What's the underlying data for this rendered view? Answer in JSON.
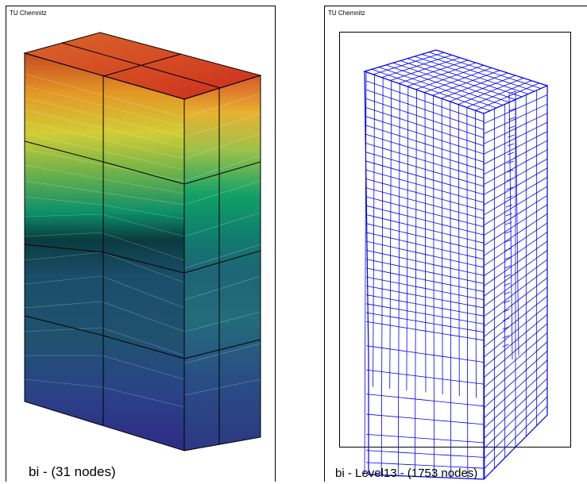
{
  "left_panel": {
    "watermark": "TU Chemnitz",
    "caption": "bi - (31 nodes)"
  },
  "right_panel": {
    "watermark": "TU Chemnitz",
    "caption": "bi - Level13 - (1753 nodes)"
  },
  "colors": {
    "mesh_line": "#0000ee",
    "element_edge": "#000000",
    "gradient_top": "#d62d1e",
    "gradient_mid": "#0f9e5a",
    "gradient_low": "#1c3d5e",
    "gradient_bottom": "#2b2f8a"
  }
}
